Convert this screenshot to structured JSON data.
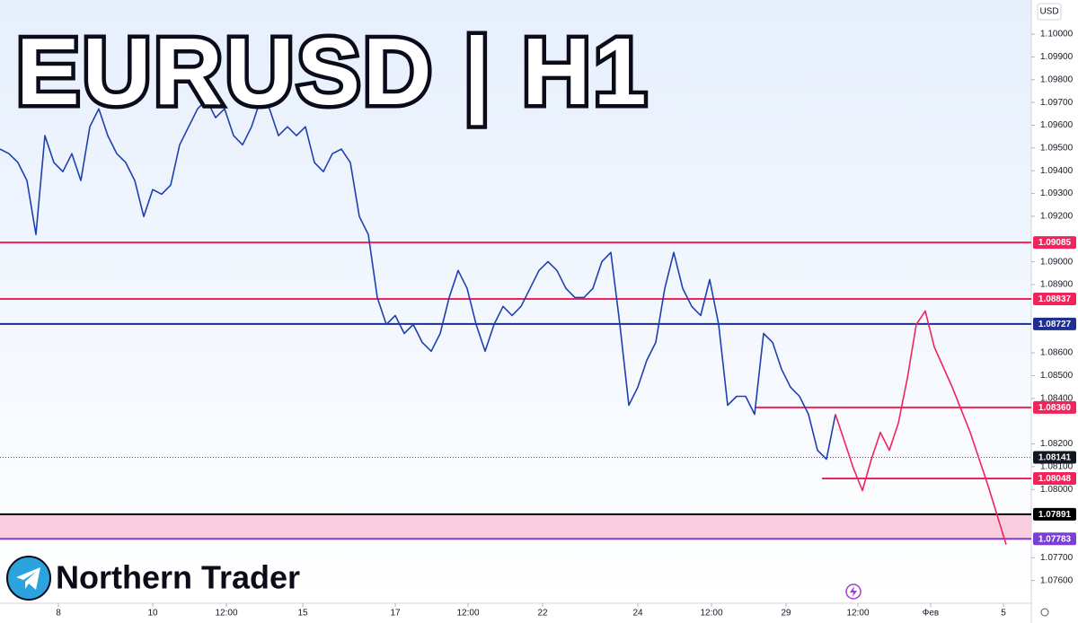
{
  "chart_data": {
    "type": "line",
    "title": "EURUSD | H1",
    "brand": "Northern Trader",
    "currency": "USD",
    "xlim": [
      0,
      114.8
    ],
    "ylim": [
      1.075,
      1.1015
    ],
    "xticks": [
      {
        "value": 6.5,
        "label": "8"
      },
      {
        "value": 17,
        "label": "10"
      },
      {
        "value": 25.2,
        "label": "12:00"
      },
      {
        "value": 33.7,
        "label": "15"
      },
      {
        "value": 44,
        "label": "17"
      },
      {
        "value": 52.1,
        "label": "12:00"
      },
      {
        "value": 60.4,
        "label": "22"
      },
      {
        "value": 71,
        "label": "24"
      },
      {
        "value": 79.2,
        "label": "12:00"
      },
      {
        "value": 87.5,
        "label": "29"
      },
      {
        "value": 95.5,
        "label": "12:00"
      },
      {
        "value": 103.6,
        "label": "Фев"
      },
      {
        "value": 111.7,
        "label": "5"
      }
    ],
    "yticks": [
      {
        "value": 1.1,
        "label": "1.10000"
      },
      {
        "value": 1.099,
        "label": "1.09900"
      },
      {
        "value": 1.098,
        "label": "1.09800"
      },
      {
        "value": 1.097,
        "label": "1.09700"
      },
      {
        "value": 1.096,
        "label": "1.09600"
      },
      {
        "value": 1.095,
        "label": "1.09500"
      },
      {
        "value": 1.094,
        "label": "1.09400"
      },
      {
        "value": 1.093,
        "label": "1.09300"
      },
      {
        "value": 1.092,
        "label": "1.09200"
      },
      {
        "value": 1.09,
        "label": "1.09000"
      },
      {
        "value": 1.089,
        "label": "1.08900"
      },
      {
        "value": 1.086,
        "label": "1.08600"
      },
      {
        "value": 1.085,
        "label": "1.08500"
      },
      {
        "value": 1.084,
        "label": "1.08400"
      },
      {
        "value": 1.082,
        "label": "1.08200"
      },
      {
        "value": 1.081,
        "label": "1.08100"
      },
      {
        "value": 1.08,
        "label": "1.08000"
      },
      {
        "value": 1.077,
        "label": "1.07700"
      },
      {
        "value": 1.076,
        "label": "1.07600"
      }
    ],
    "series": [
      {
        "name": "EURUSD",
        "color": "#1e40af",
        "x": [
          0,
          1,
          2,
          3,
          4,
          5,
          6,
          7,
          8,
          9,
          10,
          11,
          12,
          13,
          14,
          15,
          16,
          17,
          18,
          19,
          20,
          21,
          22,
          23,
          24,
          25,
          26,
          27,
          28,
          29,
          30,
          31,
          32,
          33,
          34,
          35,
          36,
          37,
          38,
          39,
          40,
          41,
          42,
          43,
          44,
          45,
          46,
          47,
          48,
          49,
          50,
          51,
          52,
          53,
          54,
          55,
          56,
          57,
          58,
          59,
          60,
          61,
          62,
          63,
          64,
          65,
          66,
          67,
          68,
          69,
          70,
          71,
          72,
          73,
          74,
          75,
          76,
          77,
          78,
          79,
          80,
          81,
          82,
          83,
          84,
          85,
          86,
          87,
          88,
          89,
          90,
          91,
          92,
          93
        ],
        "values": [
          1.09495,
          1.09475,
          1.09436,
          1.09357,
          1.0912,
          1.09554,
          1.09436,
          1.09396,
          1.09475,
          1.09357,
          1.09593,
          1.09672,
          1.09554,
          1.09475,
          1.09436,
          1.09357,
          1.09199,
          1.09317,
          1.09297,
          1.09337,
          1.09514,
          1.09593,
          1.09672,
          1.09712,
          1.09633,
          1.09672,
          1.09554,
          1.09514,
          1.09593,
          1.09712,
          1.09672,
          1.09554,
          1.09593,
          1.09554,
          1.09593,
          1.09436,
          1.09396,
          1.09475,
          1.09495,
          1.09436,
          1.09199,
          1.0912,
          1.08843,
          1.08725,
          1.08764,
          1.08685,
          1.08725,
          1.08646,
          1.08607,
          1.08685,
          1.08843,
          1.08962,
          1.08883,
          1.08725,
          1.08607,
          1.08725,
          1.08804,
          1.08764,
          1.08804,
          1.08883,
          1.08962,
          1.09001,
          1.08962,
          1.08883,
          1.08843,
          1.08843,
          1.08883,
          1.09001,
          1.09041,
          1.08725,
          1.0837,
          1.08449,
          1.08567,
          1.08646,
          1.08883,
          1.09041,
          1.08883,
          1.08804,
          1.08764,
          1.08922,
          1.08725,
          1.0837,
          1.08409,
          1.08409,
          1.0833,
          1.08685,
          1.08646,
          1.08528,
          1.08449,
          1.08409,
          1.0833,
          1.08172,
          1.08133,
          1.0833
        ]
      },
      {
        "name": "Projection",
        "color": "#f0245a",
        "x": [
          93,
          95,
          96,
          97,
          98,
          99,
          100,
          101,
          102,
          103,
          104,
          106,
          108,
          110,
          112
        ],
        "values": [
          1.0833,
          1.08093,
          1.07995,
          1.08133,
          1.08251,
          1.08172,
          1.08291,
          1.08488,
          1.08725,
          1.08784,
          1.08626,
          1.08449,
          1.08251,
          1.08015,
          1.07758
        ]
      }
    ],
    "levels": [
      {
        "value": 1.09085,
        "label": "1.09085",
        "color": "#f0245a",
        "from": 0
      },
      {
        "value": 1.08837,
        "label": "1.08837",
        "color": "#f0245a",
        "from": 0
      },
      {
        "value": 1.08727,
        "label": "1.08727",
        "color": "#1e2f8f",
        "from": 0
      },
      {
        "value": 1.0836,
        "label": "1.08360",
        "color": "#f0245a",
        "from": 84
      },
      {
        "value": 1.08141,
        "label": "1.08141",
        "color": "#131722",
        "from": 0
      },
      {
        "value": 1.08048,
        "label": "1.08048",
        "color": "#f0245a",
        "from": 91.5
      },
      {
        "value": 1.07891,
        "label": "1.07891",
        "color": "#000000",
        "from": 0
      },
      {
        "value": 1.07783,
        "label": "1.07783",
        "color": "#7b3fd6",
        "from": 0
      }
    ]
  }
}
